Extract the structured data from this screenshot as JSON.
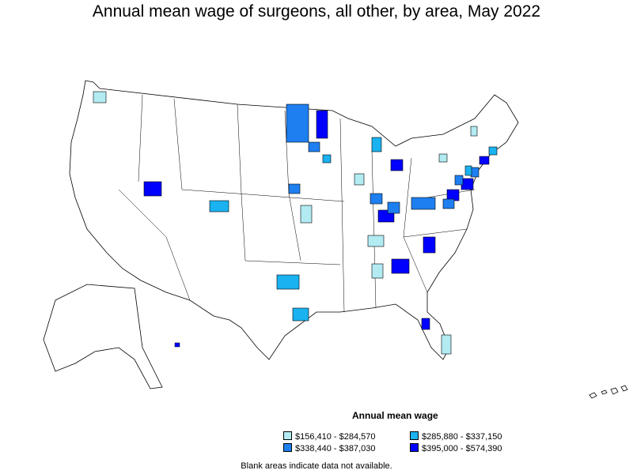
{
  "title": "Annual mean wage of surgeons, all other, by area, May 2022",
  "legend": {
    "title": "Annual mean wage",
    "items": [
      {
        "label": "$156,410 - $284,570",
        "color": "#b2ebf2"
      },
      {
        "label": "$285,880 - $337,150",
        "color": "#1ab2f0"
      },
      {
        "label": "$338,440 - $387,030",
        "color": "#1e7ff0"
      },
      {
        "label": "$395,000 - $574,390",
        "color": "#0000ff"
      }
    ]
  },
  "footnote": "Blank areas indicate data not available.",
  "colors": {
    "background": "#ffffff",
    "border": "#000000",
    "no_data": "#ffffff"
  }
}
